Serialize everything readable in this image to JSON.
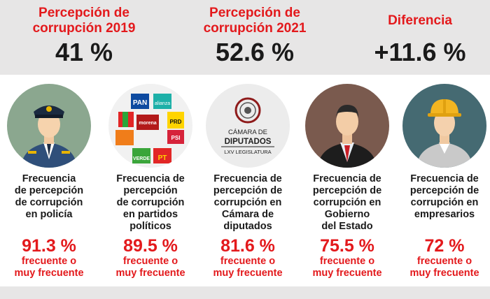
{
  "summary": {
    "year_2019": {
      "label_line1": "Percepción de",
      "label_line2": "corrupción 2019",
      "value": "41 %"
    },
    "year_2021": {
      "label_line1": "Percepción de",
      "label_line2": "corrupción 2021",
      "value": "52.6 %"
    },
    "difference": {
      "label": "Diferencia",
      "value": "+11.6 %"
    }
  },
  "cards": [
    {
      "icon": "police-officer-icon",
      "desc": [
        "Frecuencia",
        "de percepción",
        "de corrupción",
        "en policía"
      ],
      "pct": "91.3 %",
      "sub": [
        "frecuente o",
        "muy frecuente"
      ]
    },
    {
      "icon": "political-parties-logos-icon",
      "desc": [
        "Frecuencia de",
        "percepción",
        "de corrupción",
        "en partidos",
        "políticos"
      ],
      "pct": "89.5 %",
      "sub": [
        "frecuente o",
        "muy frecuente"
      ],
      "logos": [
        "PAN",
        "alianza",
        "morena",
        "PRD",
        "PSI",
        "VERDE",
        "PT"
      ]
    },
    {
      "icon": "chamber-of-deputies-logo-icon",
      "desc": [
        "Frecuencia de",
        "percepción de",
        "corrupción en",
        "Cámara de",
        "diputados"
      ],
      "pct": "81.6 %",
      "sub": [
        "frecuente o",
        "muy frecuente"
      ],
      "logo_text": [
        "CÁMARA DE",
        "DIPUTADOS",
        "LXV LEGISLATURA"
      ]
    },
    {
      "icon": "government-official-icon",
      "desc": [
        "Frecuencia de",
        "percepción de",
        "corrupción en",
        "Gobierno",
        "del Estado"
      ],
      "pct": "75.5 %",
      "sub": [
        "frecuente o",
        "muy frecuente"
      ]
    },
    {
      "icon": "businesswoman-hardhat-icon",
      "desc": [
        "Frecuencia de",
        "percepción de",
        "corrupción en",
        "empresarios"
      ],
      "pct": "72 %",
      "sub": [
        "frecuente o",
        "muy frecuente"
      ]
    }
  ],
  "colors": {
    "accent": "#e3191c",
    "panel": "#e7e6e6",
    "text": "#1a1a1a"
  }
}
